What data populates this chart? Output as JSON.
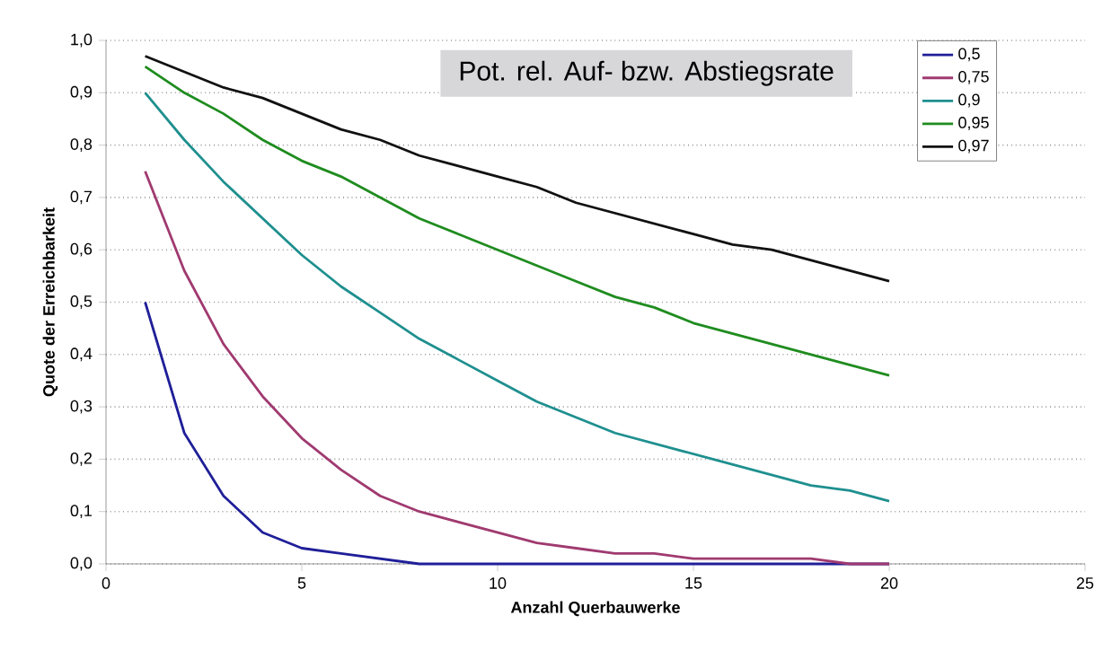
{
  "chart_data": {
    "type": "line",
    "xlabel": "Anzahl Querbauwerke",
    "ylabel": "Quote der Erreichbarkeit",
    "legend_title": "Pot. rel. Auf- bzw. Abstiegsrate",
    "x": [
      1,
      2,
      3,
      4,
      5,
      6,
      7,
      8,
      9,
      10,
      11,
      12,
      13,
      14,
      15,
      16,
      17,
      18,
      19,
      20
    ],
    "series": [
      {
        "name": "0,5",
        "color": "#1f1f99",
        "values": [
          0.5,
          0.25,
          0.13,
          0.06,
          0.03,
          0.02,
          0.01,
          0.0,
          0.0,
          0.0,
          0.0,
          0.0,
          0.0,
          0.0,
          0.0,
          0.0,
          0.0,
          0.0,
          0.0,
          0.0
        ]
      },
      {
        "name": "0,75",
        "color": "#a03a70",
        "values": [
          0.75,
          0.56,
          0.42,
          0.32,
          0.24,
          0.18,
          0.13,
          0.1,
          0.08,
          0.06,
          0.04,
          0.03,
          0.02,
          0.02,
          0.01,
          0.01,
          0.01,
          0.01,
          0.0,
          0.0
        ]
      },
      {
        "name": "0,9",
        "color": "#1f8f8f",
        "values": [
          0.9,
          0.81,
          0.73,
          0.66,
          0.59,
          0.53,
          0.48,
          0.43,
          0.39,
          0.35,
          0.31,
          0.28,
          0.25,
          0.23,
          0.21,
          0.19,
          0.17,
          0.15,
          0.14,
          0.12
        ]
      },
      {
        "name": "0,95",
        "color": "#1f8c1f",
        "values": [
          0.95,
          0.9,
          0.86,
          0.81,
          0.77,
          0.74,
          0.7,
          0.66,
          0.63,
          0.6,
          0.57,
          0.54,
          0.51,
          0.49,
          0.46,
          0.44,
          0.42,
          0.4,
          0.38,
          0.36
        ]
      },
      {
        "name": "0,97",
        "color": "#111111",
        "values": [
          0.97,
          0.94,
          0.91,
          0.89,
          0.86,
          0.83,
          0.81,
          0.78,
          0.76,
          0.74,
          0.72,
          0.69,
          0.67,
          0.65,
          0.63,
          0.61,
          0.6,
          0.58,
          0.56,
          0.54
        ]
      }
    ],
    "xlim": [
      0,
      25
    ],
    "ylim": [
      0,
      1
    ],
    "xticks": [
      0,
      5,
      10,
      15,
      20,
      25
    ],
    "yticks": [
      {
        "value": 0,
        "label": "0,0"
      },
      {
        "value": 0.1,
        "label": "0,1"
      },
      {
        "value": 0.2,
        "label": "0,2"
      },
      {
        "value": 0.3,
        "label": "0,3"
      },
      {
        "value": 0.4,
        "label": "0,4"
      },
      {
        "value": 0.5,
        "label": "0,5"
      },
      {
        "value": 0.6,
        "label": "0,6"
      },
      {
        "value": 0.7,
        "label": "0,7"
      },
      {
        "value": 0.8,
        "label": "0,8"
      },
      {
        "value": 0.9,
        "label": "0,9"
      },
      {
        "value": 1,
        "label": "1,0"
      }
    ],
    "grid": "y",
    "legend": "top right",
    "marker": "none",
    "line_style": "solid"
  }
}
